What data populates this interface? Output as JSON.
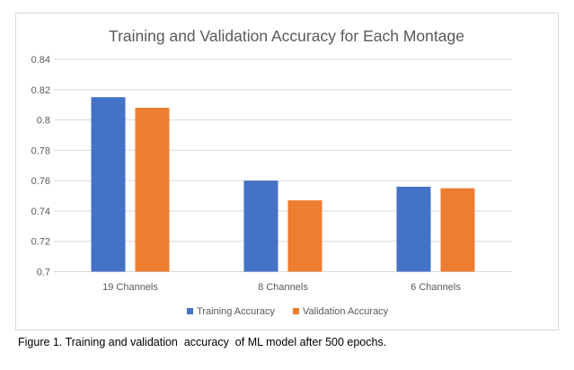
{
  "chart_data": {
    "type": "bar",
    "title": "Training and Validation Accuracy for Each Montage",
    "categories": [
      "19 Channels",
      "8 Channels",
      "6 Channels"
    ],
    "series": [
      {
        "name": "Training Accuracy",
        "color": "#4472c4",
        "values": [
          0.815,
          0.76,
          0.756
        ]
      },
      {
        "name": "Validation Accuracy",
        "color": "#ed7d31",
        "values": [
          0.808,
          0.747,
          0.755
        ]
      }
    ],
    "ylim": [
      0.7,
      0.84
    ],
    "yticks": [
      "0.7",
      "0.72",
      "0.74",
      "0.76",
      "0.78",
      "0.8",
      "0.82",
      "0.84"
    ],
    "xlabel": "",
    "ylabel": "",
    "grid": true,
    "legend": "bottom"
  },
  "caption": "Figure 1. Training and validation  accuracy  of ML model after 500 epochs."
}
